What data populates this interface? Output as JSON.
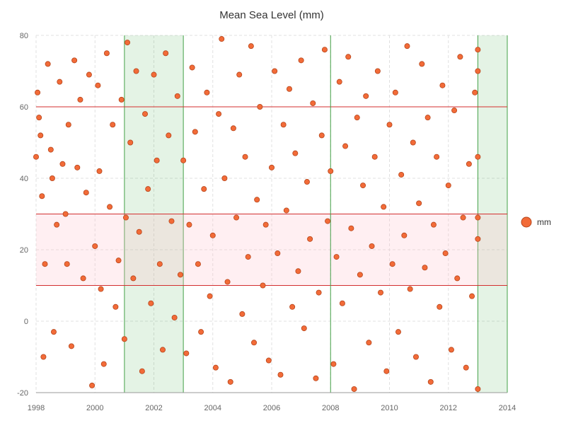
{
  "chart_data": {
    "type": "scatter",
    "title": "Mean Sea Level (mm)",
    "xlabel": "",
    "ylabel": "",
    "xlim": [
      1998,
      2014
    ],
    "ylim": [
      -20,
      80
    ],
    "x_ticks": [
      "1998",
      "2000",
      "2002",
      "2004",
      "2006",
      "2008",
      "2010",
      "2012",
      "2014"
    ],
    "y_ticks": [
      "-20",
      "0",
      "20",
      "40",
      "60",
      "80"
    ],
    "grid": true,
    "legend": {
      "position": "right",
      "entries": [
        "mm"
      ]
    },
    "colors": {
      "point_fill": "#f26b38",
      "point_stroke": "#b5451b",
      "band_fill": "rgba(255,192,203,0.25)",
      "band_line": "#d32f2f",
      "vband_fill": "rgba(76,175,80,0.15)",
      "vband_line": "#43a047"
    },
    "horizontal_lines": [
      60
    ],
    "horizontal_band": [
      10,
      30
    ],
    "vertical_lines": [
      2008
    ],
    "vertical_bands": [
      [
        2001,
        2003
      ],
      [
        2013,
        2014
      ]
    ],
    "series": [
      {
        "name": "mm",
        "points": [
          [
            1998.0,
            46
          ],
          [
            1998.05,
            64
          ],
          [
            1998.1,
            57
          ],
          [
            1998.15,
            52
          ],
          [
            1998.2,
            35
          ],
          [
            1998.25,
            -10
          ],
          [
            1998.3,
            16
          ],
          [
            1998.4,
            72
          ],
          [
            1998.5,
            48
          ],
          [
            1998.55,
            40
          ],
          [
            1998.6,
            -3
          ],
          [
            1998.7,
            27
          ],
          [
            1998.8,
            67
          ],
          [
            1998.9,
            44
          ],
          [
            1999.0,
            30
          ],
          [
            1999.05,
            16
          ],
          [
            1999.1,
            55
          ],
          [
            1999.2,
            -7
          ],
          [
            1999.3,
            73
          ],
          [
            1999.4,
            43
          ],
          [
            1999.5,
            62
          ],
          [
            1999.6,
            12
          ],
          [
            1999.7,
            36
          ],
          [
            1999.8,
            69
          ],
          [
            1999.9,
            -18
          ],
          [
            2000.0,
            21
          ],
          [
            2000.1,
            66
          ],
          [
            2000.15,
            42
          ],
          [
            2000.2,
            9
          ],
          [
            2000.3,
            -12
          ],
          [
            2000.4,
            75
          ],
          [
            2000.5,
            32
          ],
          [
            2000.6,
            55
          ],
          [
            2000.7,
            4
          ],
          [
            2000.8,
            17
          ],
          [
            2000.9,
            62
          ],
          [
            2001.0,
            -5
          ],
          [
            2001.05,
            29
          ],
          [
            2001.1,
            78
          ],
          [
            2001.2,
            50
          ],
          [
            2001.3,
            12
          ],
          [
            2001.4,
            70
          ],
          [
            2001.5,
            25
          ],
          [
            2001.6,
            -14
          ],
          [
            2001.7,
            58
          ],
          [
            2001.8,
            37
          ],
          [
            2001.9,
            5
          ],
          [
            2002.0,
            69
          ],
          [
            2002.1,
            45
          ],
          [
            2002.2,
            16
          ],
          [
            2002.3,
            -8
          ],
          [
            2002.4,
            75
          ],
          [
            2002.5,
            52
          ],
          [
            2002.6,
            28
          ],
          [
            2002.7,
            1
          ],
          [
            2002.8,
            63
          ],
          [
            2002.9,
            13
          ],
          [
            2003.0,
            45
          ],
          [
            2003.1,
            -9
          ],
          [
            2003.2,
            27
          ],
          [
            2003.3,
            71
          ],
          [
            2003.4,
            53
          ],
          [
            2003.5,
            16
          ],
          [
            2003.6,
            -3
          ],
          [
            2003.7,
            37
          ],
          [
            2003.8,
            64
          ],
          [
            2003.9,
            7
          ],
          [
            2004.0,
            24
          ],
          [
            2004.1,
            -13
          ],
          [
            2004.2,
            58
          ],
          [
            2004.3,
            79
          ],
          [
            2004.4,
            40
          ],
          [
            2004.5,
            11
          ],
          [
            2004.6,
            -17
          ],
          [
            2004.7,
            54
          ],
          [
            2004.8,
            29
          ],
          [
            2004.9,
            69
          ],
          [
            2005.0,
            2
          ],
          [
            2005.1,
            46
          ],
          [
            2005.2,
            18
          ],
          [
            2005.3,
            77
          ],
          [
            2005.4,
            -6
          ],
          [
            2005.5,
            34
          ],
          [
            2005.6,
            60
          ],
          [
            2005.7,
            10
          ],
          [
            2005.8,
            27
          ],
          [
            2005.9,
            -11
          ],
          [
            2006.0,
            43
          ],
          [
            2006.1,
            70
          ],
          [
            2006.2,
            19
          ],
          [
            2006.3,
            -15
          ],
          [
            2006.4,
            55
          ],
          [
            2006.5,
            31
          ],
          [
            2006.6,
            65
          ],
          [
            2006.7,
            4
          ],
          [
            2006.8,
            47
          ],
          [
            2006.9,
            14
          ],
          [
            2007.0,
            73
          ],
          [
            2007.1,
            -2
          ],
          [
            2007.2,
            39
          ],
          [
            2007.3,
            23
          ],
          [
            2007.4,
            61
          ],
          [
            2007.5,
            -16
          ],
          [
            2007.6,
            8
          ],
          [
            2007.7,
            52
          ],
          [
            2007.8,
            76
          ],
          [
            2007.9,
            28
          ],
          [
            2008.0,
            42
          ],
          [
            2008.1,
            -12
          ],
          [
            2008.2,
            18
          ],
          [
            2008.3,
            67
          ],
          [
            2008.4,
            5
          ],
          [
            2008.5,
            49
          ],
          [
            2008.6,
            74
          ],
          [
            2008.7,
            26
          ],
          [
            2008.8,
            -19
          ],
          [
            2008.9,
            57
          ],
          [
            2009.0,
            13
          ],
          [
            2009.1,
            38
          ],
          [
            2009.2,
            63
          ],
          [
            2009.3,
            -6
          ],
          [
            2009.4,
            21
          ],
          [
            2009.5,
            46
          ],
          [
            2009.6,
            70
          ],
          [
            2009.7,
            8
          ],
          [
            2009.8,
            32
          ],
          [
            2009.9,
            -14
          ],
          [
            2010.0,
            55
          ],
          [
            2010.1,
            16
          ],
          [
            2010.2,
            64
          ],
          [
            2010.3,
            -3
          ],
          [
            2010.4,
            41
          ],
          [
            2010.5,
            24
          ],
          [
            2010.6,
            77
          ],
          [
            2010.7,
            9
          ],
          [
            2010.8,
            50
          ],
          [
            2010.9,
            -10
          ],
          [
            2011.0,
            33
          ],
          [
            2011.1,
            72
          ],
          [
            2011.2,
            15
          ],
          [
            2011.3,
            57
          ],
          [
            2011.4,
            -17
          ],
          [
            2011.5,
            27
          ],
          [
            2011.6,
            46
          ],
          [
            2011.7,
            4
          ],
          [
            2011.8,
            66
          ],
          [
            2011.9,
            19
          ],
          [
            2012.0,
            38
          ],
          [
            2012.1,
            -8
          ],
          [
            2012.2,
            59
          ],
          [
            2012.3,
            12
          ],
          [
            2012.4,
            74
          ],
          [
            2012.5,
            29
          ],
          [
            2012.6,
            -13
          ],
          [
            2012.7,
            44
          ],
          [
            2012.8,
            7
          ],
          [
            2012.9,
            64
          ],
          [
            2013.0,
            -19
          ],
          [
            2013.0,
            23
          ],
          [
            2013.0,
            46
          ],
          [
            2013.0,
            70
          ],
          [
            2013.0,
            76
          ],
          [
            2013.0,
            29
          ]
        ]
      }
    ]
  }
}
